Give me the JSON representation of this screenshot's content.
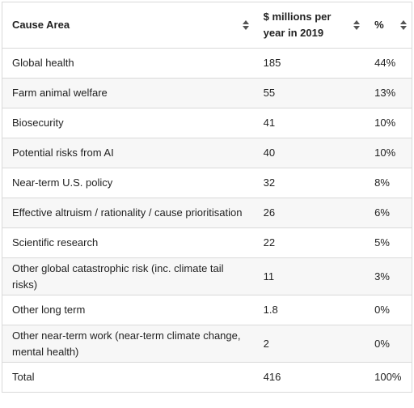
{
  "table": {
    "headers": [
      {
        "label": "Cause Area"
      },
      {
        "label": "$ millions per year in 2019"
      },
      {
        "label": "%"
      }
    ],
    "rows": [
      {
        "cause": "Global health",
        "amount": "185",
        "pct": "44%"
      },
      {
        "cause": "Farm animal welfare",
        "amount": "55",
        "pct": "13%"
      },
      {
        "cause": "Biosecurity",
        "amount": "41",
        "pct": "10%"
      },
      {
        "cause": "Potential risks from AI",
        "amount": "40",
        "pct": "10%"
      },
      {
        "cause": "Near-term U.S. policy",
        "amount": "32",
        "pct": "8%"
      },
      {
        "cause": "Effective altruism / rationality / cause prioritisation",
        "amount": "26",
        "pct": "6%"
      },
      {
        "cause": "Scientific research",
        "amount": "22",
        "pct": "5%"
      },
      {
        "cause": "Other global catastrophic risk (inc. climate tail risks)",
        "amount": "11",
        "pct": "3%"
      },
      {
        "cause": "Other long term",
        "amount": "1.8",
        "pct": "0%"
      },
      {
        "cause": "Other near-term work (near-term climate change, mental health)",
        "amount": "2",
        "pct": "0%"
      },
      {
        "cause": "Total",
        "amount": "416",
        "pct": "100%"
      }
    ]
  },
  "colors": {
    "border": "#d9d9d9",
    "alt_row": "#f7f7f7",
    "text": "#222222"
  },
  "icons": {
    "sort": "sort-arrows-icon"
  }
}
